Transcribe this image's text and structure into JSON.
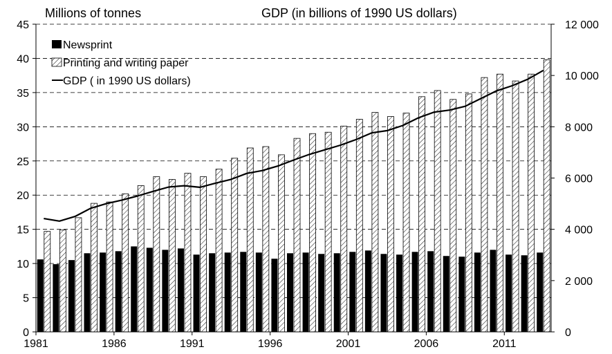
{
  "chart_data": {
    "type": "bar",
    "left_axis_title": "Millions of tonnes",
    "right_axis_title": "GDP (in billions of 1990 US dollars)",
    "x": [
      1981,
      1982,
      1983,
      1984,
      1985,
      1986,
      1987,
      1988,
      1989,
      1990,
      1991,
      1992,
      1993,
      1994,
      1995,
      1996,
      1997,
      1998,
      1999,
      2000,
      2001,
      2002,
      2003,
      2004,
      2005,
      2006,
      2007,
      2008,
      2009,
      2010,
      2011,
      2012,
      2013
    ],
    "x_tick_labels": [
      "1981",
      "1986",
      "1991",
      "1996",
      "2001",
      "2006",
      "2011"
    ],
    "y_left_ticks": [
      "0",
      "5",
      "10",
      "15",
      "20",
      "25",
      "30",
      "35",
      "40",
      "45"
    ],
    "y_right_ticks": [
      "0",
      "2 000",
      "4 000",
      "6 000",
      "8 000",
      "10 000",
      "12 000"
    ],
    "ylim_left": [
      0,
      45
    ],
    "ylim_right": [
      0,
      12000
    ],
    "grid": "horizontal dashed",
    "legend_position": "top-left",
    "series": [
      {
        "name": "Newsprint",
        "kind": "bar",
        "axis": "left",
        "color": "#000000",
        "values": [
          10.6,
          9.9,
          10.5,
          11.5,
          11.6,
          11.8,
          12.5,
          12.3,
          12.0,
          12.2,
          11.3,
          11.5,
          11.6,
          11.7,
          11.6,
          10.7,
          11.5,
          11.6,
          11.4,
          11.5,
          11.7,
          11.9,
          11.4,
          11.3,
          11.7,
          11.8,
          11.1,
          11.0,
          11.6,
          12.0,
          11.3,
          11.2,
          11.6
        ]
      },
      {
        "name": "Printing and writing paper",
        "kind": "bar",
        "axis": "left",
        "color": "#ffffff",
        "pattern": "diagonal-hatch",
        "values": [
          14.7,
          14.9,
          16.7,
          18.8,
          19.0,
          20.2,
          21.4,
          22.7,
          22.3,
          23.2,
          22.7,
          23.8,
          25.4,
          26.9,
          27.1,
          25.9,
          28.3,
          29.0,
          29.2,
          30.1,
          31.1,
          32.1,
          31.5,
          32.0,
          34.4,
          35.3,
          34.0,
          34.8,
          37.2,
          37.7,
          36.7,
          37.7,
          39.8
        ]
      },
      {
        "name": "GDP ( in 1990 US dollars)",
        "kind": "line",
        "axis": "right",
        "color": "#000000",
        "values": [
          4420,
          4320,
          4500,
          4820,
          5000,
          5140,
          5300,
          5480,
          5650,
          5700,
          5640,
          5800,
          5950,
          6180,
          6290,
          6470,
          6700,
          6920,
          7100,
          7280,
          7500,
          7760,
          7850,
          8050,
          8350,
          8570,
          8650,
          8800,
          9100,
          9400,
          9600,
          9850,
          10200
        ]
      }
    ]
  }
}
